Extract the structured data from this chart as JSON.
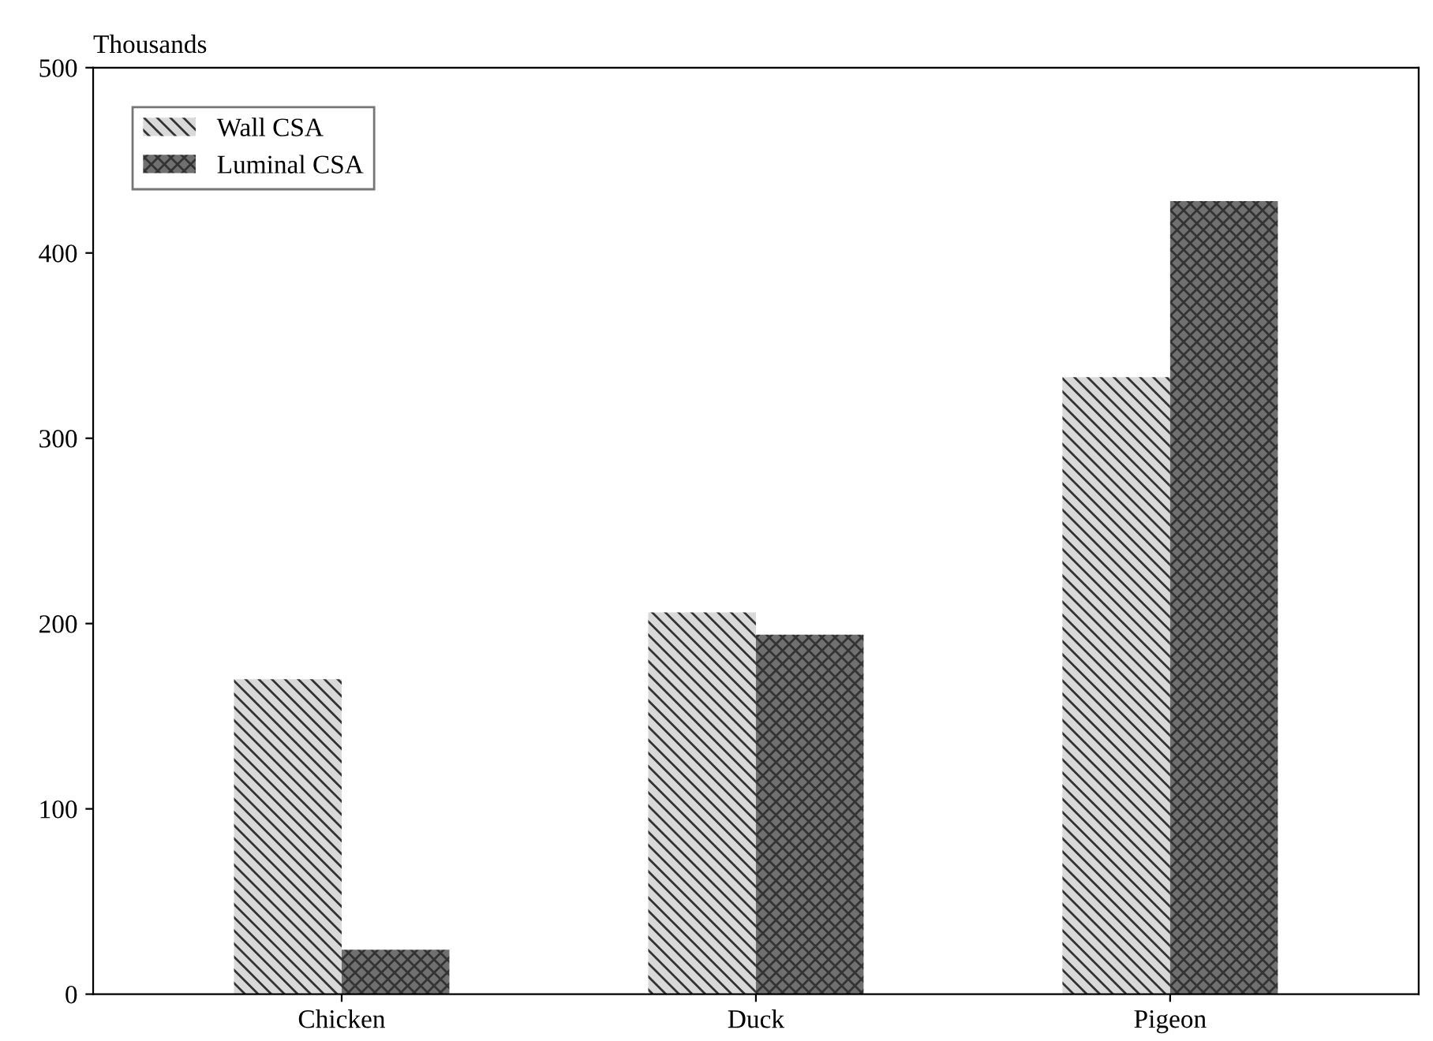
{
  "chart_data": {
    "type": "bar",
    "ylabel": "Thousands",
    "categories": [
      "Chicken",
      "Duck",
      "Pigeon"
    ],
    "series": [
      {
        "name": "Wall CSA",
        "color": "#d9d9d9",
        "values": [
          170,
          206,
          333
        ]
      },
      {
        "name": "Luminal CSA",
        "color": "#707070",
        "values": [
          24,
          194,
          428
        ]
      }
    ],
    "ylim": [
      0,
      500
    ],
    "yticks": [
      0,
      100,
      200,
      300,
      400,
      500
    ],
    "grid": false,
    "legend": "top left"
  }
}
